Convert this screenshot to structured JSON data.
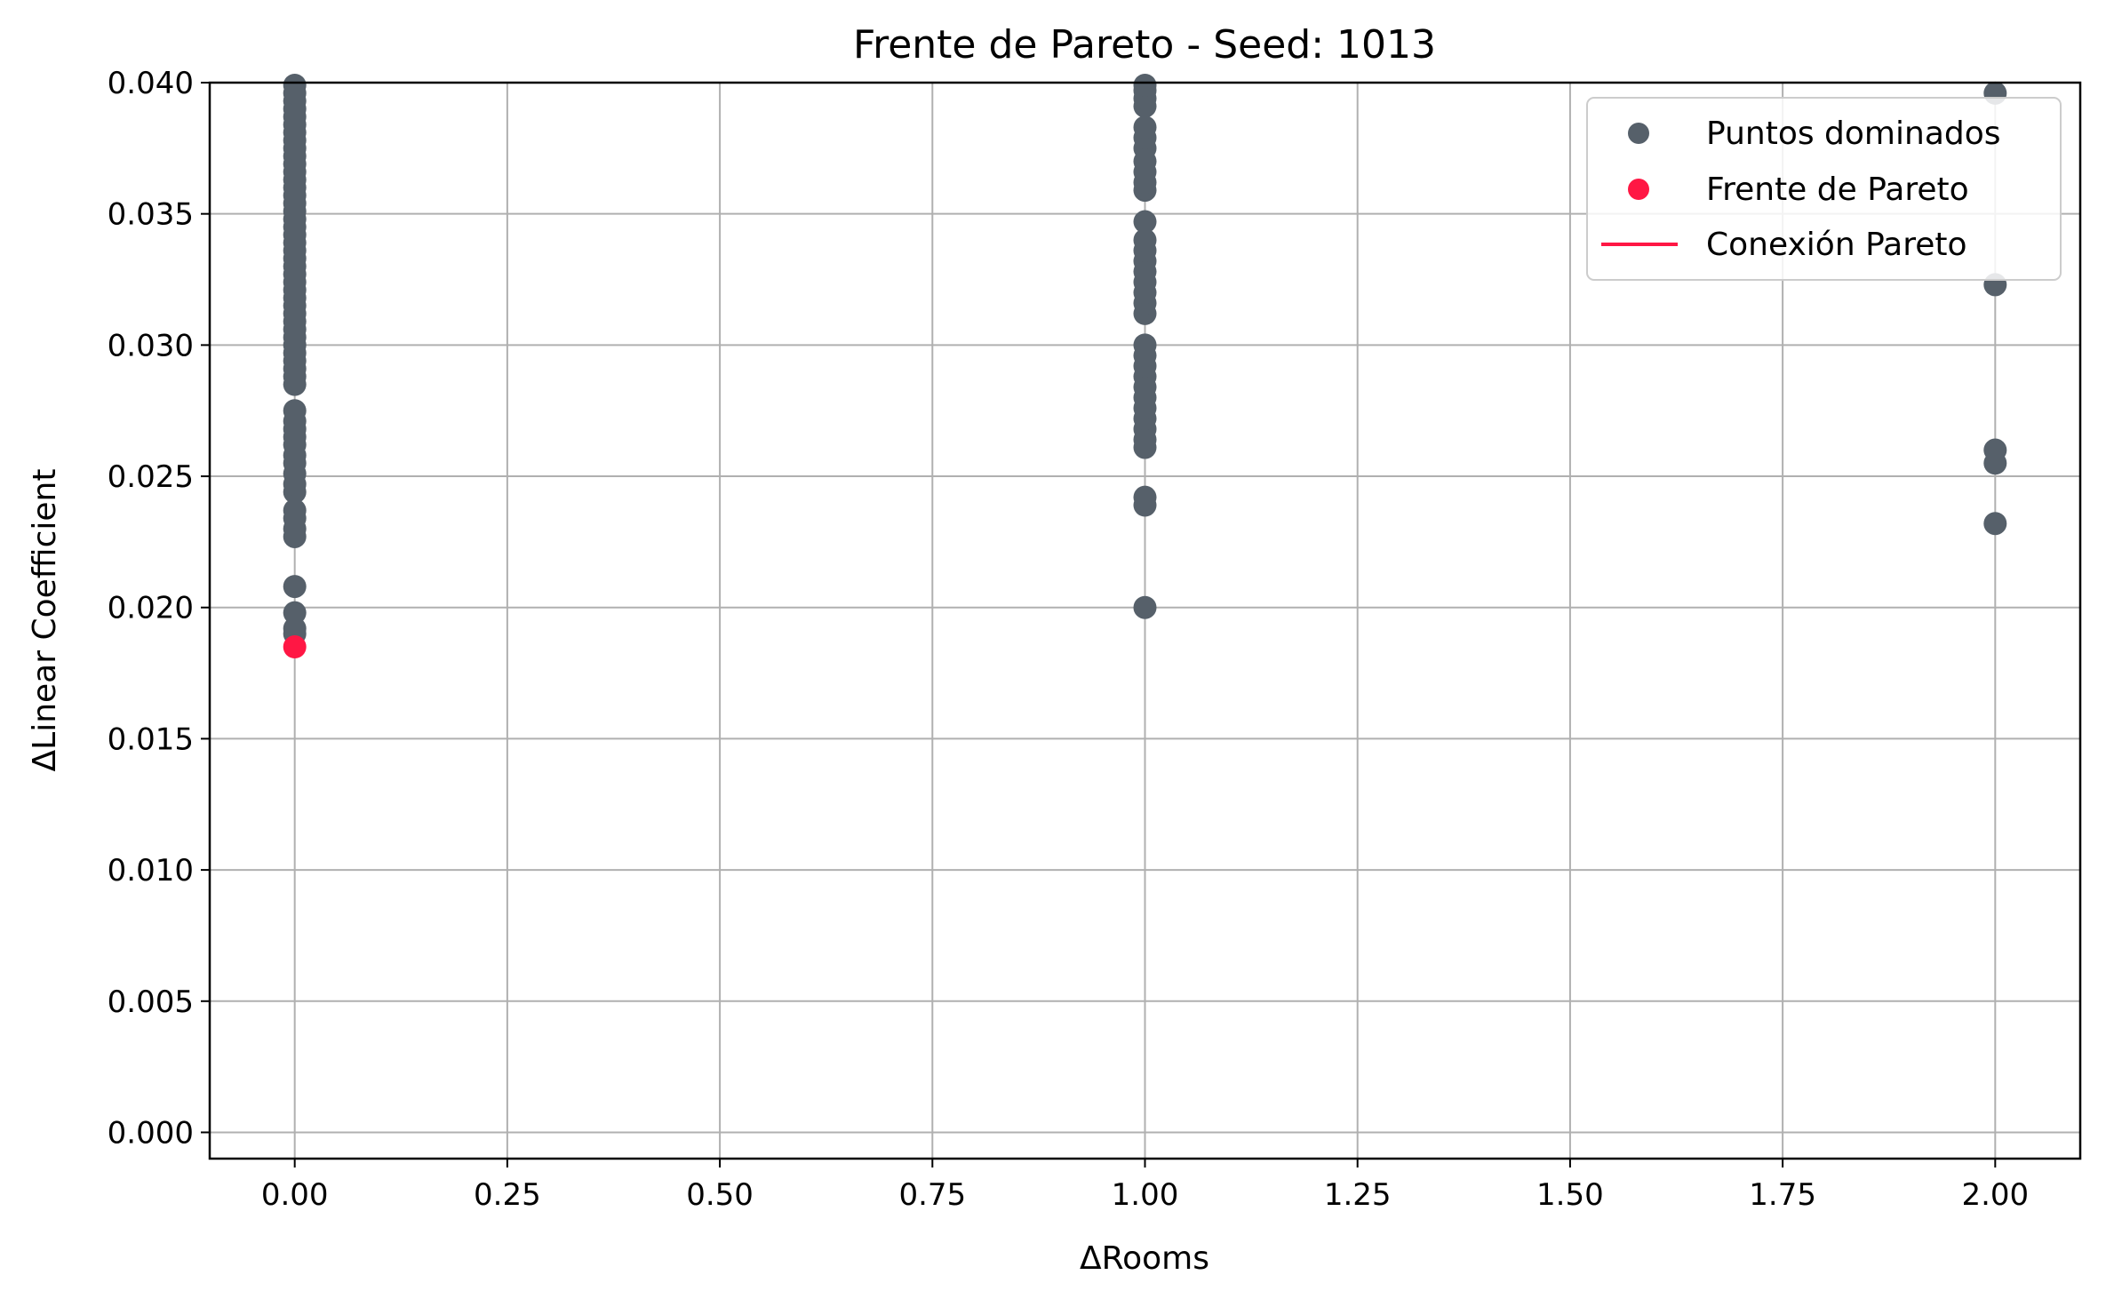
{
  "chart_data": {
    "type": "scatter",
    "title": "Frente de Pareto - Seed: 1013",
    "xlabel": "ΔRooms",
    "ylabel": "ΔLinear Coefficient",
    "xlim": [
      -0.1,
      2.1
    ],
    "ylim": [
      -0.001,
      0.04
    ],
    "xticks": [
      0.0,
      0.25,
      0.5,
      0.75,
      1.0,
      1.25,
      1.5,
      1.75,
      2.0
    ],
    "xtick_labels": [
      "0.00",
      "0.25",
      "0.50",
      "0.75",
      "1.00",
      "1.25",
      "1.50",
      "1.75",
      "2.00"
    ],
    "yticks": [
      0.0,
      0.005,
      0.01,
      0.015,
      0.02,
      0.025,
      0.03,
      0.035,
      0.04
    ],
    "ytick_labels": [
      "0.000",
      "0.005",
      "0.010",
      "0.015",
      "0.020",
      "0.025",
      "0.030",
      "0.035",
      "0.040"
    ],
    "grid": true,
    "legend_position": "top-right",
    "legend": [
      {
        "label": "Puntos dominados",
        "kind": "marker",
        "color": "#56606a"
      },
      {
        "label": "Frente de Pareto",
        "kind": "marker",
        "color": "#ff1744"
      },
      {
        "label": "Conexión Pareto",
        "kind": "line",
        "color": "#ff1744"
      }
    ],
    "series": [
      {
        "name": "Puntos dominados",
        "color": "#56606a",
        "points": [
          [
            0,
            0.019
          ],
          [
            0,
            0.0192
          ],
          [
            0,
            0.0198
          ],
          [
            0,
            0.0208
          ],
          [
            0,
            0.0227
          ],
          [
            0,
            0.023
          ],
          [
            0,
            0.0234
          ],
          [
            0,
            0.0237
          ],
          [
            0,
            0.0244
          ],
          [
            0,
            0.0247
          ],
          [
            0,
            0.0251
          ],
          [
            0,
            0.0255
          ],
          [
            0,
            0.0258
          ],
          [
            0,
            0.0262
          ],
          [
            0,
            0.0265
          ],
          [
            0,
            0.0268
          ],
          [
            0,
            0.0271
          ],
          [
            0,
            0.0275
          ],
          [
            0,
            0.0285
          ],
          [
            0,
            0.0288
          ],
          [
            0,
            0.0291
          ],
          [
            0,
            0.0294
          ],
          [
            0,
            0.0297
          ],
          [
            0,
            0.03
          ],
          [
            0,
            0.0303
          ],
          [
            0,
            0.0306
          ],
          [
            0,
            0.0309
          ],
          [
            0,
            0.0312
          ],
          [
            0,
            0.0315
          ],
          [
            0,
            0.0318
          ],
          [
            0,
            0.0321
          ],
          [
            0,
            0.0324
          ],
          [
            0,
            0.0327
          ],
          [
            0,
            0.033
          ],
          [
            0,
            0.0333
          ],
          [
            0,
            0.0336
          ],
          [
            0,
            0.0339
          ],
          [
            0,
            0.0342
          ],
          [
            0,
            0.0345
          ],
          [
            0,
            0.0348
          ],
          [
            0,
            0.0351
          ],
          [
            0,
            0.0354
          ],
          [
            0,
            0.0357
          ],
          [
            0,
            0.036
          ],
          [
            0,
            0.0363
          ],
          [
            0,
            0.0366
          ],
          [
            0,
            0.0369
          ],
          [
            0,
            0.0372
          ],
          [
            0,
            0.0375
          ],
          [
            0,
            0.0378
          ],
          [
            0,
            0.0381
          ],
          [
            0,
            0.0384
          ],
          [
            0,
            0.0387
          ],
          [
            0,
            0.039
          ],
          [
            0,
            0.0393
          ],
          [
            0,
            0.0396
          ],
          [
            0,
            0.0399
          ],
          [
            1,
            0.02
          ],
          [
            1,
            0.0239
          ],
          [
            1,
            0.0242
          ],
          [
            1,
            0.0261
          ],
          [
            1,
            0.0264
          ],
          [
            1,
            0.0268
          ],
          [
            1,
            0.0272
          ],
          [
            1,
            0.0276
          ],
          [
            1,
            0.028
          ],
          [
            1,
            0.0284
          ],
          [
            1,
            0.0288
          ],
          [
            1,
            0.0292
          ],
          [
            1,
            0.0296
          ],
          [
            1,
            0.03
          ],
          [
            1,
            0.0312
          ],
          [
            1,
            0.0316
          ],
          [
            1,
            0.032
          ],
          [
            1,
            0.0324
          ],
          [
            1,
            0.0328
          ],
          [
            1,
            0.0332
          ],
          [
            1,
            0.0336
          ],
          [
            1,
            0.034
          ],
          [
            1,
            0.0347
          ],
          [
            1,
            0.0359
          ],
          [
            1,
            0.0362
          ],
          [
            1,
            0.0366
          ],
          [
            1,
            0.037
          ],
          [
            1,
            0.0375
          ],
          [
            1,
            0.0379
          ],
          [
            1,
            0.0383
          ],
          [
            1,
            0.0391
          ],
          [
            1,
            0.0394
          ],
          [
            1,
            0.0397
          ],
          [
            1,
            0.0399
          ],
          [
            2,
            0.0232
          ],
          [
            2,
            0.0255
          ],
          [
            2,
            0.026
          ],
          [
            2,
            0.0323
          ],
          [
            2,
            0.0396
          ]
        ]
      },
      {
        "name": "Frente de Pareto",
        "color": "#ff1744",
        "points": [
          [
            0,
            0.0185
          ]
        ]
      }
    ],
    "pareto_line": [
      [
        0,
        0.0185
      ]
    ]
  }
}
